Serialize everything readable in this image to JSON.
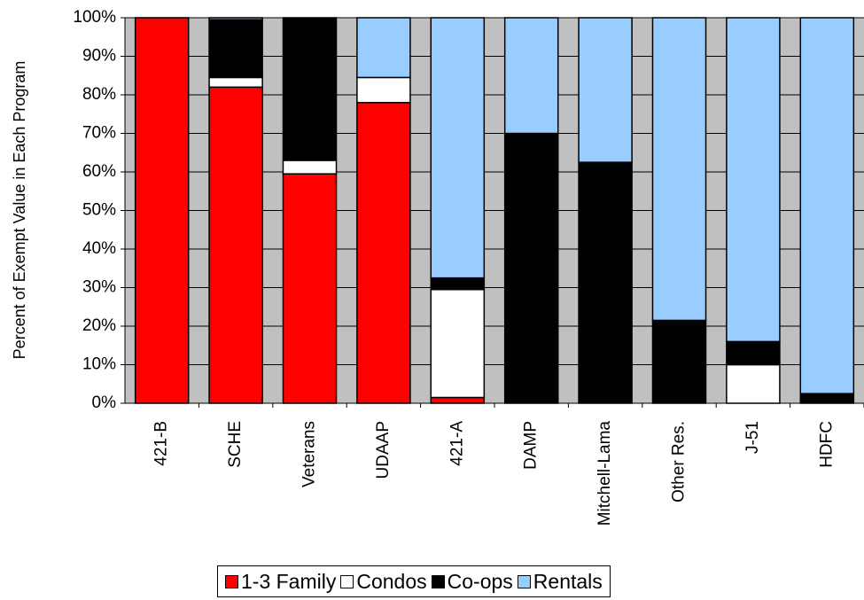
{
  "chart_data": {
    "type": "bar",
    "stacked": true,
    "percent_scale": true,
    "categories": [
      "421-B",
      "SCHE",
      "Veterans",
      "UDAAP",
      "421-A",
      "DAMP",
      "Mitchell-Lama",
      "Other Res.",
      "J-51",
      "HDFC"
    ],
    "series": [
      {
        "name": "1-3 Family",
        "color": "#ff0000",
        "values": [
          100,
          82,
          59.5,
          78,
          1.5,
          0,
          0,
          0,
          0,
          0
        ]
      },
      {
        "name": "Condos",
        "color": "#ffffff",
        "values": [
          0,
          2.5,
          3.5,
          6.5,
          28,
          0,
          0,
          0,
          10,
          0
        ]
      },
      {
        "name": "Co-ops",
        "color": "#000000",
        "values": [
          0,
          15,
          37,
          0,
          3,
          70,
          62.5,
          21.5,
          6,
          2.5
        ]
      },
      {
        "name": "Rentals",
        "color": "#99ccff",
        "values": [
          0,
          0.5,
          0,
          15.5,
          67.5,
          30,
          37.5,
          78.5,
          84,
          97.5
        ]
      }
    ],
    "ylabel": "Percent of Exempt Value in Each Program",
    "xlabel": "",
    "ylim": [
      0,
      100
    ],
    "yticks": [
      "0%",
      "10%",
      "20%",
      "30%",
      "40%",
      "50%",
      "60%",
      "70%",
      "80%",
      "90%",
      "100%"
    ],
    "grid": true,
    "plot_background": "#c0c0c0",
    "legend_position": "bottom"
  }
}
